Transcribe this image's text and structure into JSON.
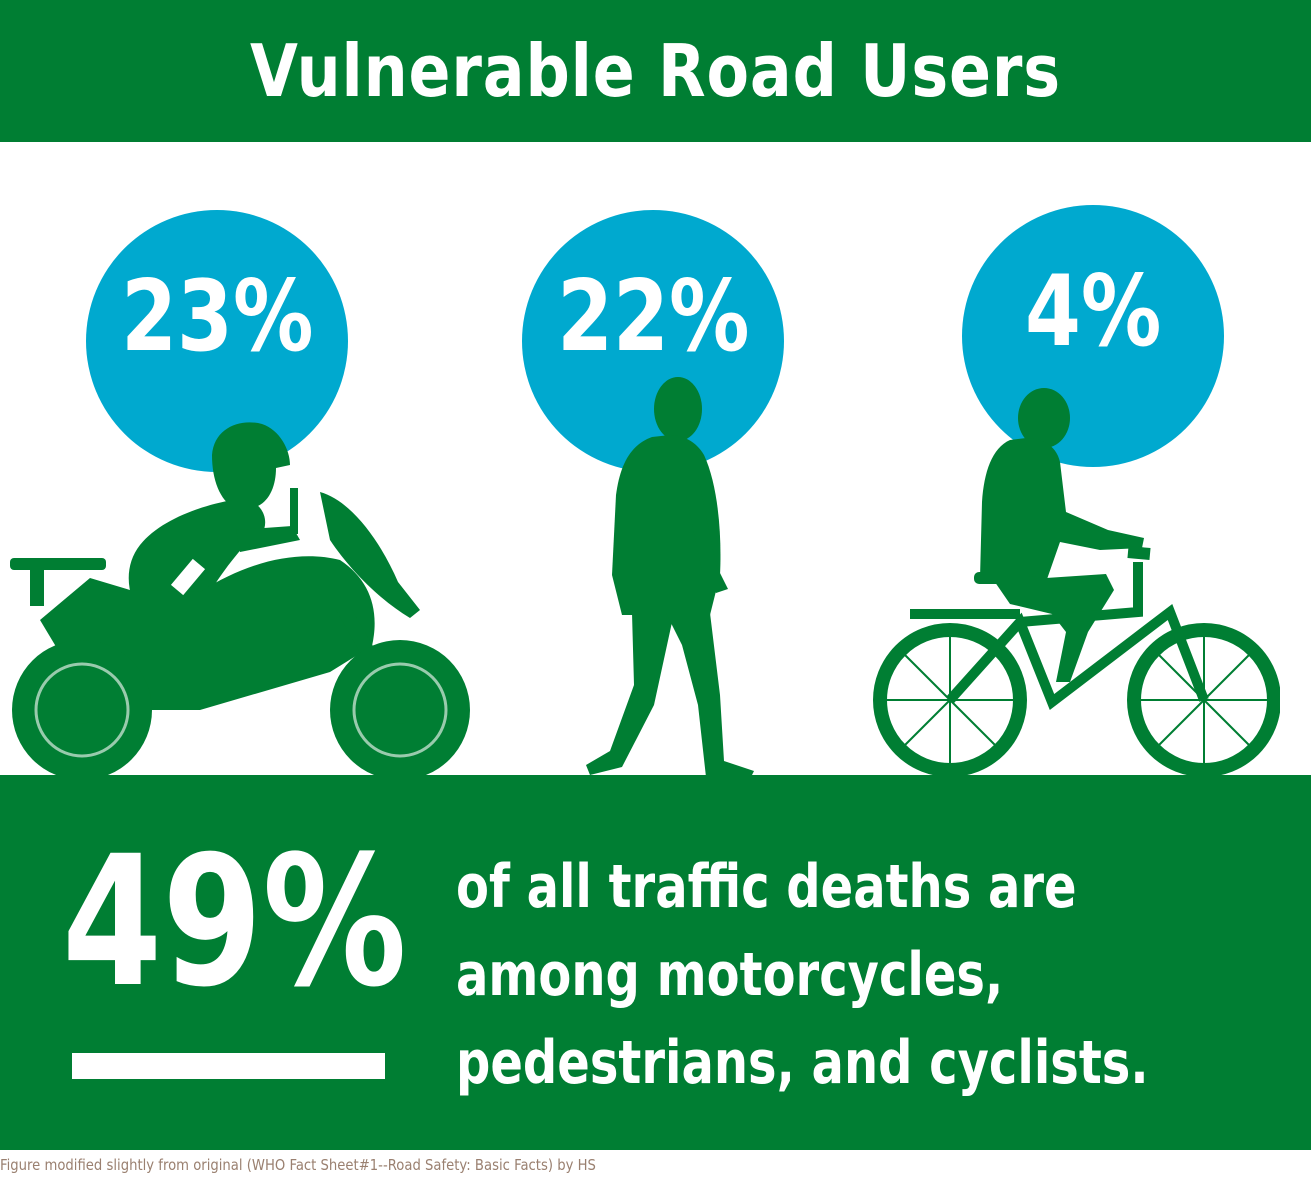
{
  "header": {
    "title": "Vulnerable Road Users"
  },
  "stats": [
    {
      "value": "23%",
      "icon": "motorcyclist-icon"
    },
    {
      "value": "22%",
      "icon": "pedestrian-icon"
    },
    {
      "value": "4%",
      "icon": "cyclist-icon"
    }
  ],
  "summary": {
    "value": "49%",
    "lines": [
      "of all traffic deaths are",
      "among motorcycles,",
      "pedestrians, and cyclists."
    ]
  },
  "caption": "Figure modified slightly from original (WHO Fact Sheet#1--Road Safety: Basic Facts) by HS",
  "colors": {
    "green": "#007e33",
    "blue": "#00a9cf",
    "white": "#ffffff"
  }
}
